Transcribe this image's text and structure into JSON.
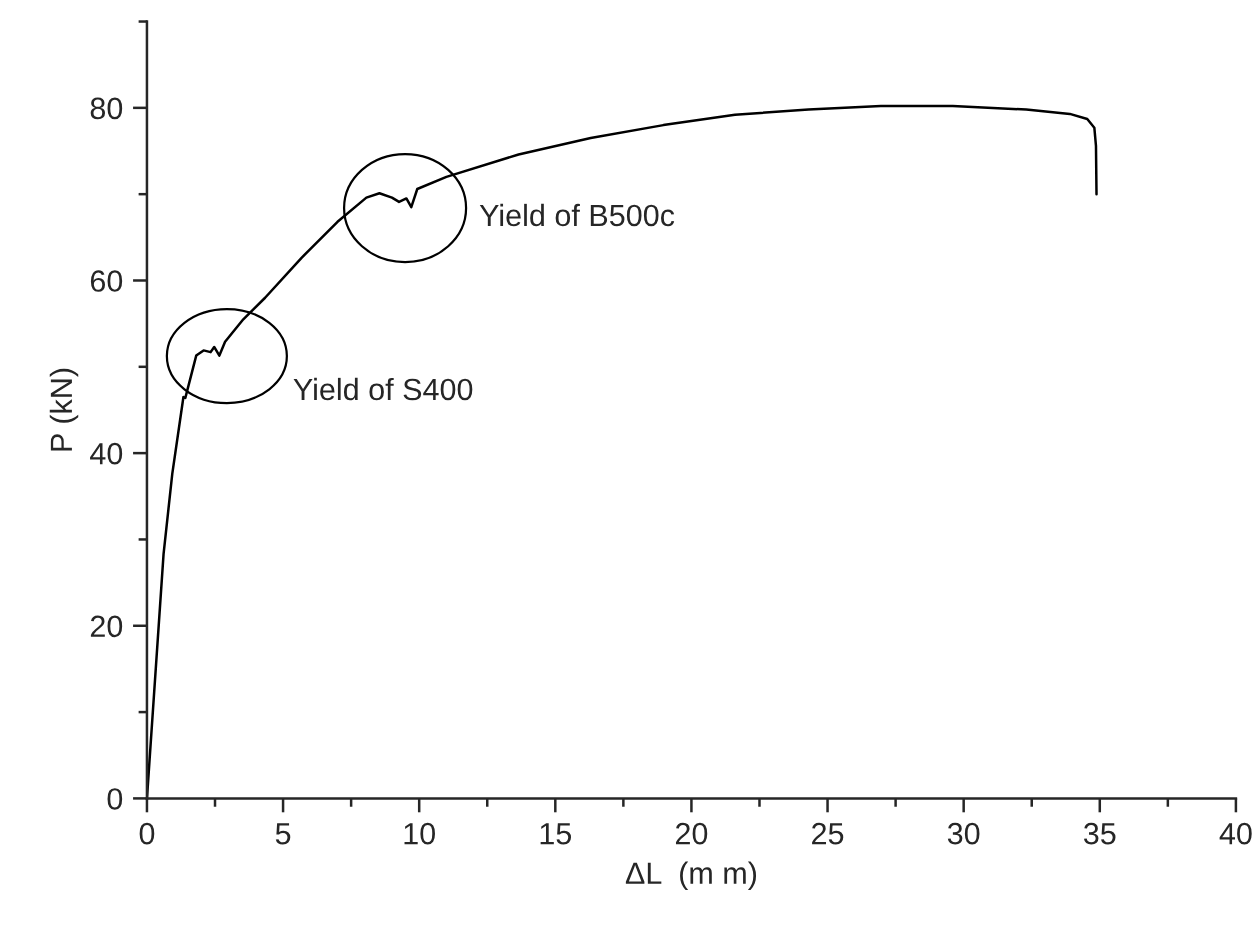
{
  "chart_data": {
    "type": "line",
    "xlabel": "ΔL  (m m)",
    "ylabel": "P (kN)",
    "xlim": [
      0,
      40
    ],
    "ylim": [
      0,
      90
    ],
    "xticks": [
      0,
      5,
      10,
      15,
      20,
      25,
      30,
      35,
      40
    ],
    "yticks": [
      0,
      20,
      40,
      60,
      80
    ],
    "grid": false,
    "legend": false,
    "marker": "none",
    "line_style": "solid",
    "series": [
      {
        "color": "#000000",
        "x": [
          0,
          0.61,
          0.93,
          1.34,
          1.41,
          1.81,
          2.08,
          2.34,
          2.47,
          2.66,
          2.87,
          3.54,
          4.34,
          5.67,
          7.0,
          8.06,
          8.54,
          9.0,
          9.26,
          9.53,
          9.71,
          9.93,
          11.0,
          13.65,
          16.3,
          18.97,
          21.6,
          24.3,
          26.96,
          29.6,
          32.3,
          33.9,
          34.54,
          34.8,
          34.86,
          34.88
        ],
        "values": [
          0,
          28.3,
          37.6,
          46.5,
          46.4,
          51.3,
          51.9,
          51.7,
          52.3,
          51.3,
          52.9,
          55.5,
          58.0,
          62.6,
          66.8,
          69.6,
          70.1,
          69.6,
          69.1,
          69.5,
          68.5,
          70.6,
          72.0,
          74.6,
          76.5,
          78.0,
          79.2,
          79.8,
          80.2,
          80.2,
          79.8,
          79.3,
          78.7,
          77.7,
          75.6,
          70.0
        ]
      }
    ],
    "annotations": [
      "Yield of S400",
      "Yield of B500c"
    ]
  }
}
